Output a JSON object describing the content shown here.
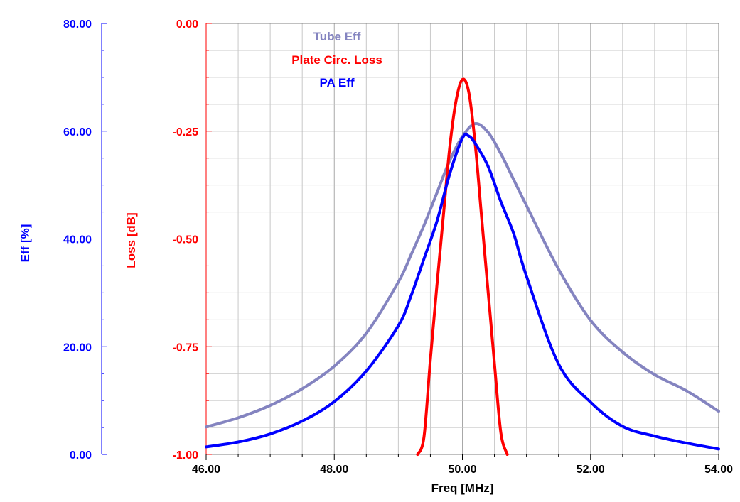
{
  "chart_data": {
    "type": "line",
    "xlabel": "Freq [MHz]",
    "xlim": [
      46.0,
      54.0
    ],
    "x_ticks": [
      "46.00",
      "48.00",
      "50.00",
      "52.00",
      "54.00"
    ],
    "grid": true,
    "axes": {
      "eff": {
        "label": "Eff [%]",
        "color": "#0000ff",
        "range": [
          0,
          80
        ],
        "ticks": [
          "0.00",
          "20.00",
          "40.00",
          "60.00",
          "80.00"
        ]
      },
      "loss": {
        "label": "Loss [dB]",
        "color": "#ff0000",
        "range": [
          -1.0,
          0.0
        ],
        "ticks": [
          "-1.00",
          "-0.75",
          "-0.50",
          "-0.25",
          "0.00"
        ]
      }
    },
    "legend": [
      "Tube Eff",
      "Plate Circ. Loss",
      "PA Eff"
    ],
    "legend_placement": "top-left",
    "series": [
      {
        "name": "Tube Eff",
        "axis": "eff",
        "color": "#8484c0",
        "x": [
          46.0,
          46.5,
          47.0,
          47.5,
          48.0,
          48.5,
          49.0,
          49.2,
          49.4,
          49.6,
          49.8,
          50.0,
          50.2,
          50.4,
          50.6,
          50.8,
          51.0,
          51.5,
          52.0,
          52.5,
          53.0,
          53.5,
          54.0
        ],
        "y": [
          5.1,
          6.8,
          9.1,
          12.2,
          16.4,
          22.5,
          32.0,
          37.1,
          42.5,
          48.5,
          54.5,
          59.0,
          61.4,
          59.8,
          55.8,
          51.0,
          46.2,
          34.4,
          24.9,
          19.0,
          14.8,
          11.8,
          8.0
        ]
      },
      {
        "name": "Plate Circ. Loss",
        "axis": "loss",
        "color": "#ff0000",
        "x": [
          49.3,
          49.4,
          49.5,
          49.6,
          49.7,
          49.8,
          49.9,
          50.0,
          50.1,
          50.2,
          50.3,
          50.4,
          50.5,
          50.6,
          50.7
        ],
        "y": [
          -1.0,
          -0.96,
          -0.78,
          -0.61,
          -0.45,
          -0.29,
          -0.18,
          -0.13,
          -0.16,
          -0.28,
          -0.45,
          -0.62,
          -0.79,
          -0.95,
          -1.0
        ]
      },
      {
        "name": "PA Eff",
        "axis": "eff",
        "color": "#0000ff",
        "x": [
          46.0,
          46.5,
          47.0,
          47.5,
          48.0,
          48.5,
          49.0,
          49.2,
          49.4,
          49.6,
          49.8,
          50.0,
          50.1,
          50.2,
          50.4,
          50.6,
          50.8,
          51.0,
          51.5,
          52.0,
          52.5,
          53.0,
          53.5,
          54.0
        ],
        "y": [
          1.4,
          2.3,
          3.8,
          6.2,
          9.8,
          15.5,
          23.9,
          29.5,
          36.3,
          43.2,
          52.0,
          58.7,
          59.1,
          57.7,
          53.5,
          46.9,
          41.0,
          33.1,
          16.8,
          9.7,
          5.2,
          3.4,
          2.1,
          1.0
        ]
      }
    ]
  }
}
